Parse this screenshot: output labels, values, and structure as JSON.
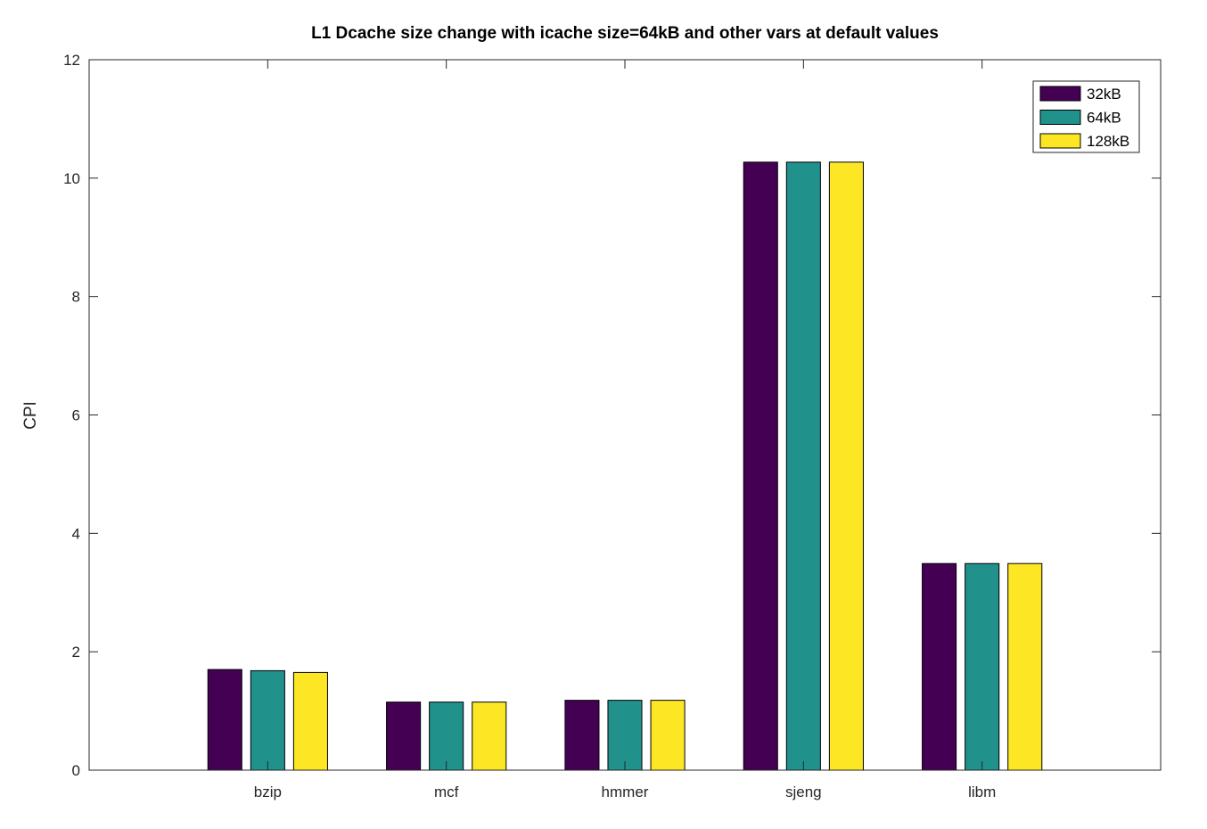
{
  "chart_data": {
    "type": "bar",
    "title": "L1 Dcache size change with icache size=64kB and other vars at default values",
    "xlabel": "",
    "ylabel": "CPI",
    "categories": [
      "bzip",
      "mcf",
      "hmmer",
      "sjeng",
      "libm"
    ],
    "ylim": [
      0,
      12
    ],
    "yticks": [
      "0",
      "2",
      "4",
      "6",
      "8",
      "10",
      "12"
    ],
    "xlim": [
      0,
      6
    ],
    "grid": false,
    "legend_position": "top-right",
    "series": [
      {
        "name": "32kB",
        "color": "#440154",
        "values": [
          1.7,
          1.15,
          1.18,
          10.27,
          3.49
        ]
      },
      {
        "name": "64kB",
        "color": "#21918c",
        "values": [
          1.68,
          1.15,
          1.18,
          10.27,
          3.49
        ]
      },
      {
        "name": "128kB",
        "color": "#fde725",
        "values": [
          1.65,
          1.15,
          1.18,
          10.27,
          3.49
        ]
      }
    ]
  }
}
